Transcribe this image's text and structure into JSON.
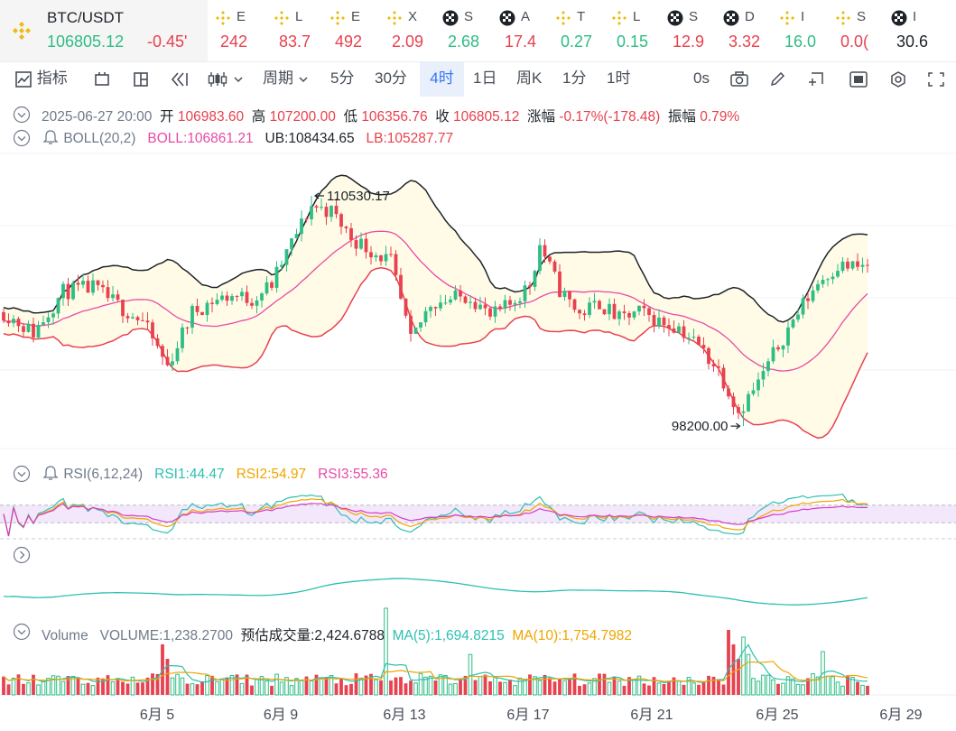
{
  "main_ticker": {
    "symbol": "BTC/USDT",
    "price": "106805.12",
    "change": "-0.45'"
  },
  "tickers": [
    {
      "icon": "bnb-icon",
      "label": "E",
      "value": "242",
      "trend": "dn",
      "x": 232,
      "w": 65
    },
    {
      "icon": "bnb-icon",
      "label": "L",
      "value": "83.7",
      "trend": "dn",
      "x": 297,
      "w": 62
    },
    {
      "icon": "bnb-icon",
      "label": "E",
      "value": "492",
      "trend": "dn",
      "x": 359,
      "w": 63
    },
    {
      "icon": "bnb-icon",
      "label": "X",
      "value": "2.09",
      "trend": "dn",
      "x": 422,
      "w": 62
    },
    {
      "icon": "checker-icon",
      "label": "S",
      "value": "2.68",
      "trend": "up",
      "x": 484,
      "w": 63
    },
    {
      "icon": "checker-icon",
      "label": "A",
      "value": "17.4",
      "trend": "dn",
      "x": 547,
      "w": 62
    },
    {
      "icon": "bnb-icon",
      "label": "T",
      "value": "0.27",
      "trend": "up",
      "x": 609,
      "w": 62
    },
    {
      "icon": "bnb-icon",
      "label": "L",
      "value": "0.15",
      "trend": "up",
      "x": 671,
      "w": 62
    },
    {
      "icon": "checker-icon",
      "label": "S",
      "value": "12.9",
      "trend": "dn",
      "x": 733,
      "w": 62
    },
    {
      "icon": "checker-icon",
      "label": "D",
      "value": "3.32",
      "trend": "dn",
      "x": 795,
      "w": 62
    },
    {
      "icon": "bnb-icon",
      "label": "I",
      "value": "16.0",
      "trend": "up",
      "x": 857,
      "w": 62
    },
    {
      "icon": "bnb-icon",
      "label": "S",
      "value": "0.0(",
      "trend": "dn",
      "x": 919,
      "w": 62
    },
    {
      "icon": "checker-icon",
      "label": "I",
      "value": "30.6",
      "trend": "neu",
      "x": 981,
      "w": 78
    }
  ],
  "toolbar": {
    "indicators": "指标",
    "period": "周期",
    "intervals": [
      "5分",
      "30分",
      "4时",
      "1日",
      "周K",
      "1分",
      "1时"
    ],
    "active_interval": "4时",
    "countdown": "0s"
  },
  "ohlc": {
    "time": "2025-06-27 20:00",
    "open_label": "开",
    "open": "106983.60",
    "high_label": "高",
    "high": "107200.00",
    "low_label": "低",
    "low": "106356.76",
    "close_label": "收",
    "close": "106805.12",
    "change_label": "涨幅",
    "change": "-0.17%(-178.48)",
    "amp_label": "振幅",
    "amp": "0.79%"
  },
  "boll": {
    "name": "BOLL(20,2)",
    "mid": "BOLL:106861.21",
    "ub": "UB:108434.65",
    "lb": "LB:105287.77"
  },
  "rsi": {
    "name": "RSI(6,12,24)",
    "rsi1": "RSI1:44.47",
    "rsi2": "RSI2:54.97",
    "rsi3": "RSI3:55.36"
  },
  "volume": {
    "name": "Volume",
    "vol": "VOLUME:1,238.2700",
    "est": "预估成交量:2,424.6788",
    "ma5": "MA(5):1,694.8215",
    "ma10": "MA(10):1,754.7982"
  },
  "annotations": {
    "max": "110530.17",
    "min": "98200.00"
  },
  "colors": {
    "up": "#2ebd85",
    "down": "#e8414f",
    "boll_mid": "#e84aa6",
    "boll_ub": "#1e2329",
    "boll_lb": "#e8414f",
    "band_fill": "#fffbe6",
    "rsi1": "#2cc0b1",
    "rsi2": "#f0a500",
    "rsi3": "#d63bc6",
    "rsi_zone": "#f3e8fb",
    "vol_ma5": "#2cc0b1",
    "vol_ma10": "#f0a500"
  },
  "chart_data": {
    "type": "candlestick",
    "interval": "4h",
    "x_ticks": [
      "6月 5",
      "6月 9",
      "6月 13",
      "6月 17",
      "6月 21",
      "6月 25",
      "6月 29"
    ],
    "y_range": [
      97000,
      112800
    ],
    "max_price": 110530.17,
    "min_price": 98200.0,
    "close_path": [
      [
        0,
        104300
      ],
      [
        6,
        103200
      ],
      [
        12,
        105400
      ],
      [
        18,
        105600
      ],
      [
        24,
        104500
      ],
      [
        28,
        103800
      ],
      [
        33,
        101400
      ],
      [
        38,
        104300
      ],
      [
        42,
        104900
      ],
      [
        46,
        105200
      ],
      [
        50,
        105000
      ],
      [
        54,
        105800
      ],
      [
        58,
        108000
      ],
      [
        62,
        110000
      ],
      [
        66,
        109700
      ],
      [
        70,
        108300
      ],
      [
        74,
        107600
      ],
      [
        78,
        107000
      ],
      [
        82,
        102700
      ],
      [
        86,
        104800
      ],
      [
        90,
        105000
      ],
      [
        94,
        105200
      ],
      [
        98,
        104000
      ],
      [
        102,
        104700
      ],
      [
        106,
        105800
      ],
      [
        108,
        107900
      ],
      [
        112,
        105500
      ],
      [
        116,
        104200
      ],
      [
        120,
        104800
      ],
      [
        124,
        103900
      ],
      [
        128,
        104300
      ],
      [
        132,
        103800
      ],
      [
        136,
        103500
      ],
      [
        140,
        102500
      ],
      [
        144,
        101200
      ],
      [
        148,
        99000
      ],
      [
        152,
        100500
      ],
      [
        156,
        102500
      ],
      [
        160,
        104300
      ],
      [
        164,
        105900
      ],
      [
        168,
        106800
      ],
      [
        172,
        106700
      ],
      [
        174,
        106800
      ]
    ],
    "seed": 11,
    "n_candles": 175,
    "boll_period": 20,
    "boll_mult": 2,
    "rsi_periods": [
      6,
      12,
      24
    ],
    "volume_spikes": [
      [
        32,
        3.5
      ],
      [
        33,
        2.5
      ],
      [
        77,
        6.0
      ],
      [
        94,
        2.8
      ],
      [
        146,
        4.5
      ],
      [
        147,
        3.5
      ],
      [
        148,
        2.5
      ],
      [
        149,
        4.0
      ],
      [
        150,
        2.8
      ],
      [
        165,
        3.0
      ]
    ]
  }
}
